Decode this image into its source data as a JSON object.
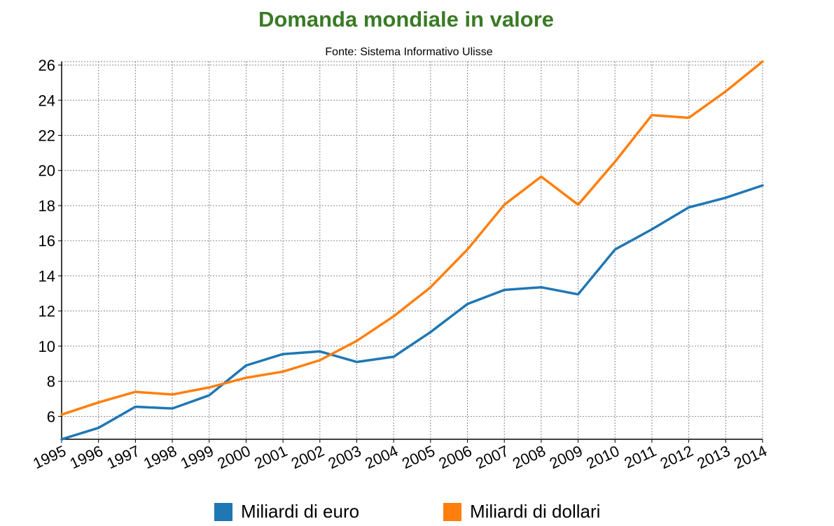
{
  "chart_data": {
    "type": "line",
    "title": "Domanda mondiale in valore",
    "subtitle": "Fonte: Sistema Informativo Ulisse",
    "xlabel": "",
    "ylabel": "",
    "x": [
      "1995",
      "1996",
      "1997",
      "1998",
      "1999",
      "2000",
      "2001",
      "2002",
      "2003",
      "2004",
      "2005",
      "2006",
      "2007",
      "2008",
      "2009",
      "2010",
      "2011",
      "2012",
      "2013",
      "2014"
    ],
    "ylim": [
      4.7,
      26.2
    ],
    "yticks": [
      6,
      8,
      10,
      12,
      14,
      16,
      18,
      20,
      22,
      24,
      26
    ],
    "grid": true,
    "legend_position": "bottom",
    "series": [
      {
        "name": "Miliardi di euro",
        "color": "#1f77b4",
        "values": [
          4.7,
          5.35,
          6.55,
          6.45,
          7.2,
          8.9,
          9.55,
          9.7,
          9.1,
          9.4,
          10.8,
          12.4,
          13.2,
          13.35,
          12.95,
          15.5,
          16.65,
          17.9,
          18.45,
          19.15
        ]
      },
      {
        "name": "Miliardi di dollari",
        "color": "#ff7f0e",
        "values": [
          6.1,
          6.8,
          7.4,
          7.25,
          7.65,
          8.2,
          8.55,
          9.2,
          10.3,
          11.7,
          13.35,
          15.5,
          18.05,
          19.65,
          18.05,
          20.5,
          23.15,
          23.0,
          24.5,
          26.2
        ]
      }
    ]
  }
}
